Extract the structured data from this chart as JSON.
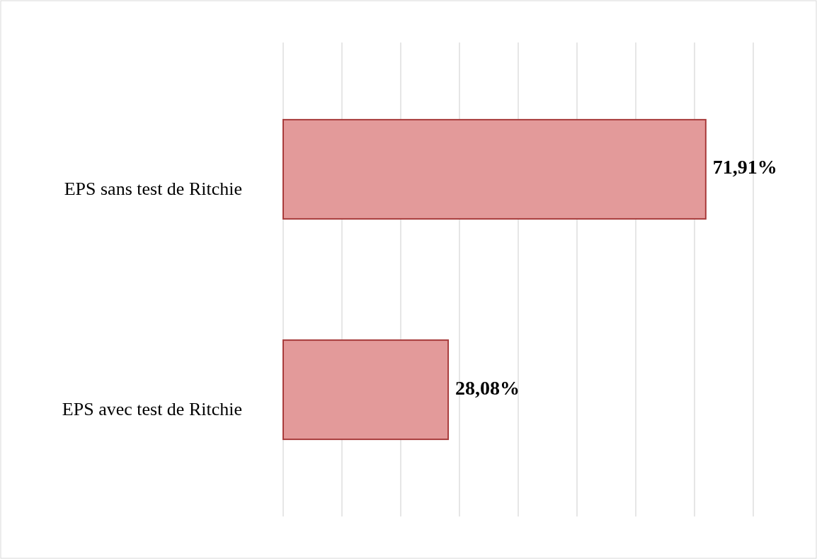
{
  "chart_data": {
    "type": "bar",
    "orientation": "horizontal",
    "categories": [
      "EPS sans test de Ritchie",
      "EPS avec test de Ritchie"
    ],
    "values": [
      71.91,
      28.08
    ],
    "value_labels": [
      "71,91%",
      "28,08%"
    ],
    "color": "#e39a9a",
    "xlim": [
      0,
      80
    ],
    "xticks": [
      {
        "value": 0,
        "label": null
      },
      {
        "value": 10,
        "label": null
      },
      {
        "value": 20,
        "label": null
      },
      {
        "value": 30,
        "label": null
      },
      {
        "value": 40,
        "label": null
      },
      {
        "value": 50,
        "label": null
      },
      {
        "value": 60,
        "label": null
      },
      {
        "value": 70,
        "label": null
      },
      {
        "value": 80,
        "label": null
      }
    ],
    "grid": "x",
    "tick_labels": "y"
  }
}
